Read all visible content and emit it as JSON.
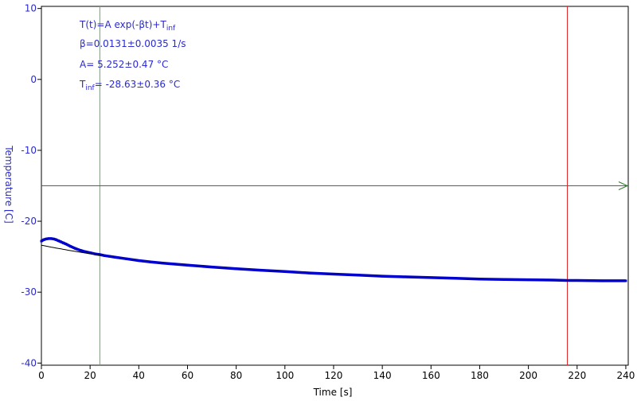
{
  "chart_data": {
    "type": "scatter",
    "xlabel": "Time [s]",
    "ylabel": "Temperature [C]",
    "xlim": [
      0,
      241
    ],
    "ylim": [
      -40.3,
      10.3
    ],
    "x_ticks": [
      0,
      20,
      40,
      60,
      80,
      100,
      120,
      140,
      160,
      180,
      200,
      220,
      240
    ],
    "y_ticks": [
      10,
      0,
      -10,
      -20,
      -30,
      -40
    ],
    "grid": false,
    "annotations": {
      "formula": {
        "lead": "T(t)=A exp(-βt)+T",
        "sub": "inf"
      },
      "beta": "β=0.0131±0.0035 1/s",
      "amp": "A= 5.252±0.47 °C",
      "tinf": {
        "lead": "T",
        "sub": "inf",
        "tail": "= -28.63±0.36 °C"
      }
    },
    "fit_model": {
      "A": 5.252,
      "beta": 0.0131,
      "T_inf": -28.63
    },
    "fit_line_range": [
      0,
      24
    ],
    "cursors": {
      "green_vertical_x": 24,
      "red_vertical_x": 216,
      "green_horizontal_y": -15
    },
    "series": [
      {
        "x": [
          0,
          1,
          2,
          3,
          4,
          5,
          6,
          7,
          8,
          9,
          10,
          12,
          14,
          16,
          18,
          20,
          22,
          24,
          26,
          28,
          30,
          35,
          40,
          45,
          50,
          55,
          60,
          70,
          80,
          90,
          100,
          110,
          120,
          130,
          140,
          150,
          160,
          170,
          180,
          190,
          200,
          210,
          216,
          220,
          230,
          240
        ],
        "y": [
          -22.8,
          -22.6,
          -22.5,
          -22.45,
          -22.45,
          -22.5,
          -22.6,
          -22.75,
          -22.9,
          -23.05,
          -23.2,
          -23.55,
          -23.85,
          -24.1,
          -24.3,
          -24.45,
          -24.6,
          -24.7,
          -24.85,
          -24.95,
          -25.05,
          -25.3,
          -25.55,
          -25.75,
          -25.9,
          -26.05,
          -26.2,
          -26.45,
          -26.7,
          -26.9,
          -27.1,
          -27.3,
          -27.45,
          -27.6,
          -27.75,
          -27.85,
          -27.95,
          -28.05,
          -28.15,
          -28.2,
          -28.25,
          -28.3,
          -28.35,
          -28.35,
          -28.4,
          -28.4
        ],
        "color": "#0000cc"
      }
    ],
    "colors": {
      "data": "#0000cc",
      "text": "#2a2acf",
      "fit": "#000000",
      "green_cursor": "#33cc33",
      "dark_green_cursor": "#2a7f2a",
      "red_cursor": "#dd2222",
      "axes": "#000000"
    }
  }
}
